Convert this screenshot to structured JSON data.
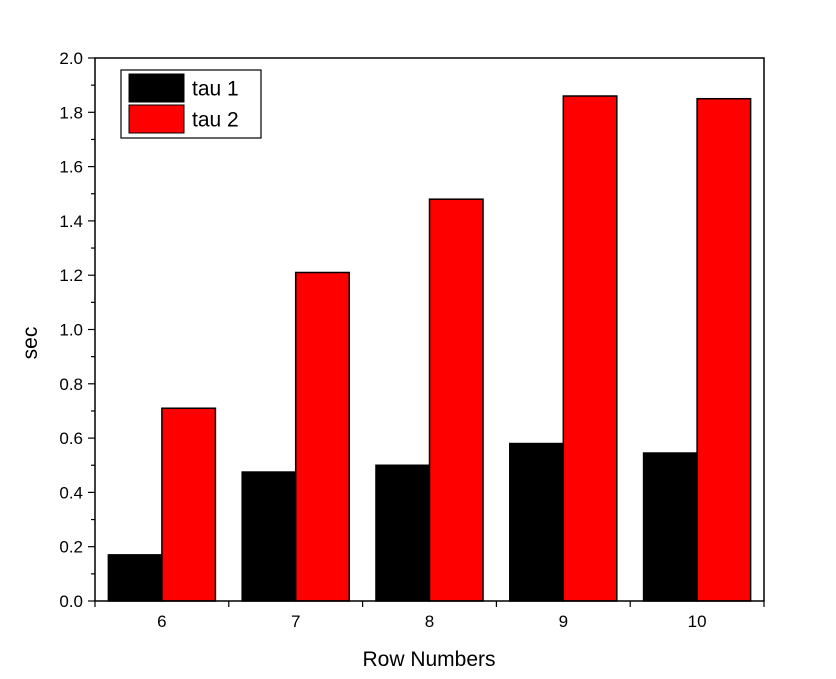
{
  "chart_data": {
    "type": "bar",
    "title": "",
    "xlabel": "Row Numbers",
    "ylabel": "sec",
    "categories": [
      "6",
      "7",
      "8",
      "9",
      "10"
    ],
    "series": [
      {
        "name": "tau 1",
        "color": "#000000",
        "values": [
          0.17,
          0.475,
          0.5,
          0.58,
          0.545
        ]
      },
      {
        "name": "tau 2",
        "color": "#ff0000",
        "values": [
          0.71,
          1.21,
          1.48,
          1.86,
          1.85
        ]
      }
    ],
    "ylim": [
      0,
      2.0
    ],
    "yticks": [
      "0.0",
      "0.2",
      "0.4",
      "0.6",
      "0.8",
      "1.0",
      "1.2",
      "1.4",
      "1.6",
      "1.8",
      "2.0"
    ],
    "grid": false,
    "legend_position": "top-left"
  }
}
